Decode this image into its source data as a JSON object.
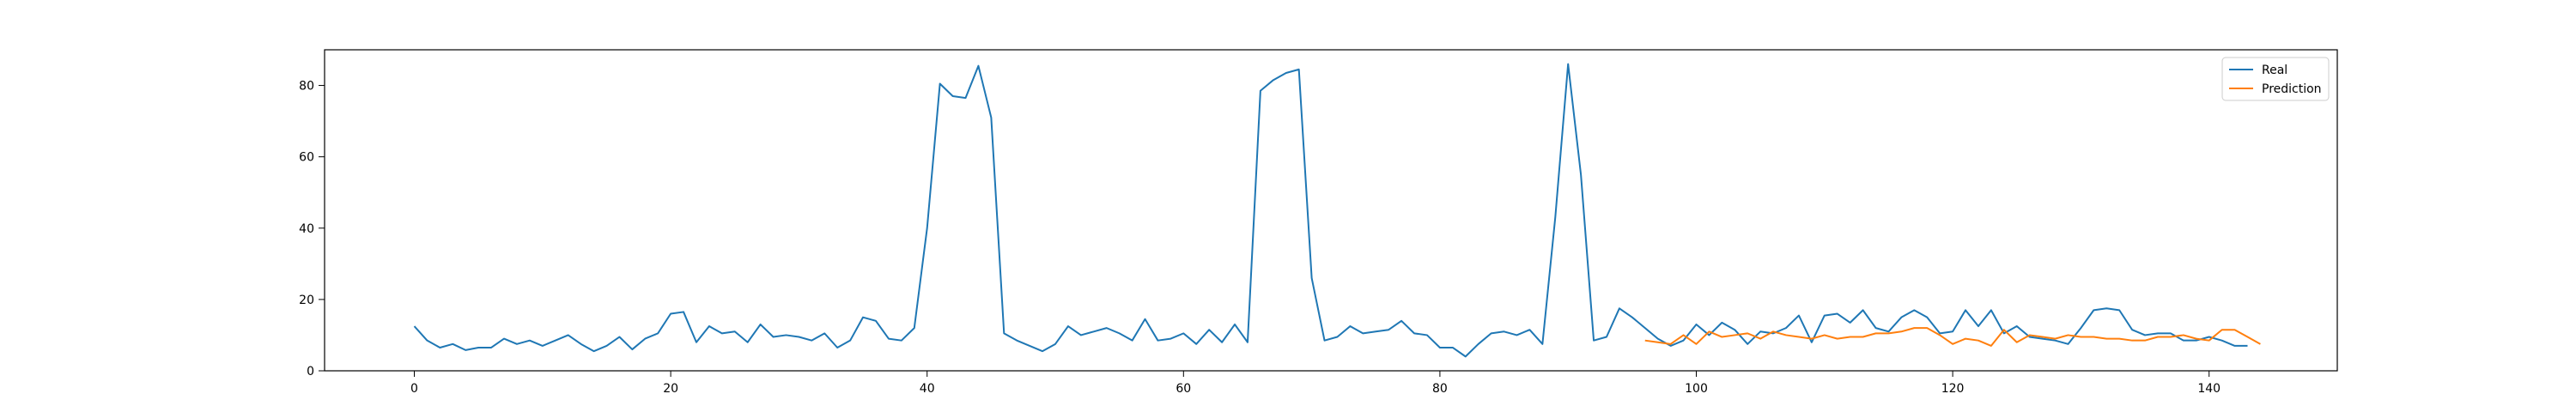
{
  "chart_data": {
    "type": "line",
    "title": "",
    "xlabel": "",
    "ylabel": "",
    "xlim": [
      -7,
      150
    ],
    "ylim": [
      0,
      90
    ],
    "xticks": [
      0,
      20,
      40,
      60,
      80,
      100,
      120,
      140
    ],
    "yticks": [
      0,
      20,
      40,
      60,
      80
    ],
    "grid": false,
    "legend": "top-right",
    "series": [
      {
        "name": "Real",
        "color": "#1f77b4",
        "x_start": 0,
        "values": [
          12.5,
          8.5,
          6.5,
          7.5,
          5.8,
          6.5,
          6.5,
          9.0,
          7.5,
          8.5,
          7.0,
          8.5,
          10.0,
          7.5,
          5.5,
          7.0,
          9.5,
          6.0,
          9.0,
          10.5,
          16.0,
          16.5,
          8.0,
          12.5,
          10.5,
          11.0,
          8.0,
          13.0,
          9.5,
          10.0,
          9.5,
          8.5,
          10.5,
          6.5,
          8.5,
          15.0,
          14.0,
          9.0,
          8.5,
          12.0,
          40.0,
          80.5,
          77.0,
          76.5,
          85.5,
          71.0,
          10.5,
          8.5,
          7.0,
          5.5,
          7.5,
          12.5,
          10.0,
          11.0,
          12.0,
          10.5,
          8.5,
          14.5,
          8.5,
          9.0,
          10.5,
          7.5,
          11.5,
          8.0,
          13.0,
          8.0,
          78.5,
          81.5,
          83.5,
          84.5,
          26.0,
          8.5,
          9.5,
          12.5,
          10.5,
          11.0,
          11.5,
          14.0,
          10.5,
          10.0,
          6.5,
          6.5,
          4.0,
          7.5,
          10.5,
          11.0,
          10.0,
          11.5,
          7.5,
          43.0,
          86.0,
          55.0,
          8.5,
          9.5,
          17.5,
          15.0,
          12.0,
          9.0,
          7.0,
          8.5,
          13.0,
          10.0,
          13.5,
          11.5,
          7.5,
          11.0,
          10.5,
          12.0,
          15.5,
          8.0,
          15.5,
          16.0,
          13.5,
          17.0,
          12.0,
          11.0,
          15.0,
          17.0,
          15.0,
          10.5,
          11.0,
          17.0,
          12.5,
          17.0,
          10.5,
          12.5,
          9.5,
          9.0,
          8.5,
          7.5,
          12.0,
          17.0,
          17.5,
          17.0,
          11.5,
          10.0,
          10.5,
          10.5,
          8.5,
          8.5,
          9.5,
          8.5,
          7.0,
          7.0
        ]
      },
      {
        "name": "Prediction",
        "color": "#ff7f0e",
        "x_start": 96,
        "values": [
          8.5,
          8.0,
          7.5,
          10.0,
          7.5,
          11.0,
          9.5,
          10.0,
          10.5,
          9.0,
          11.0,
          10.0,
          9.5,
          9.0,
          10.0,
          9.0,
          9.5,
          9.5,
          10.5,
          10.5,
          11.0,
          12.0,
          12.0,
          10.0,
          7.5,
          9.0,
          8.5,
          7.0,
          11.5,
          8.0,
          10.0,
          9.5,
          9.0,
          10.0,
          9.5,
          9.5,
          9.0,
          9.0,
          8.5,
          8.5,
          9.5,
          9.5,
          10.0,
          9.0,
          8.5,
          11.5,
          11.5,
          9.5,
          7.5
        ]
      }
    ]
  }
}
